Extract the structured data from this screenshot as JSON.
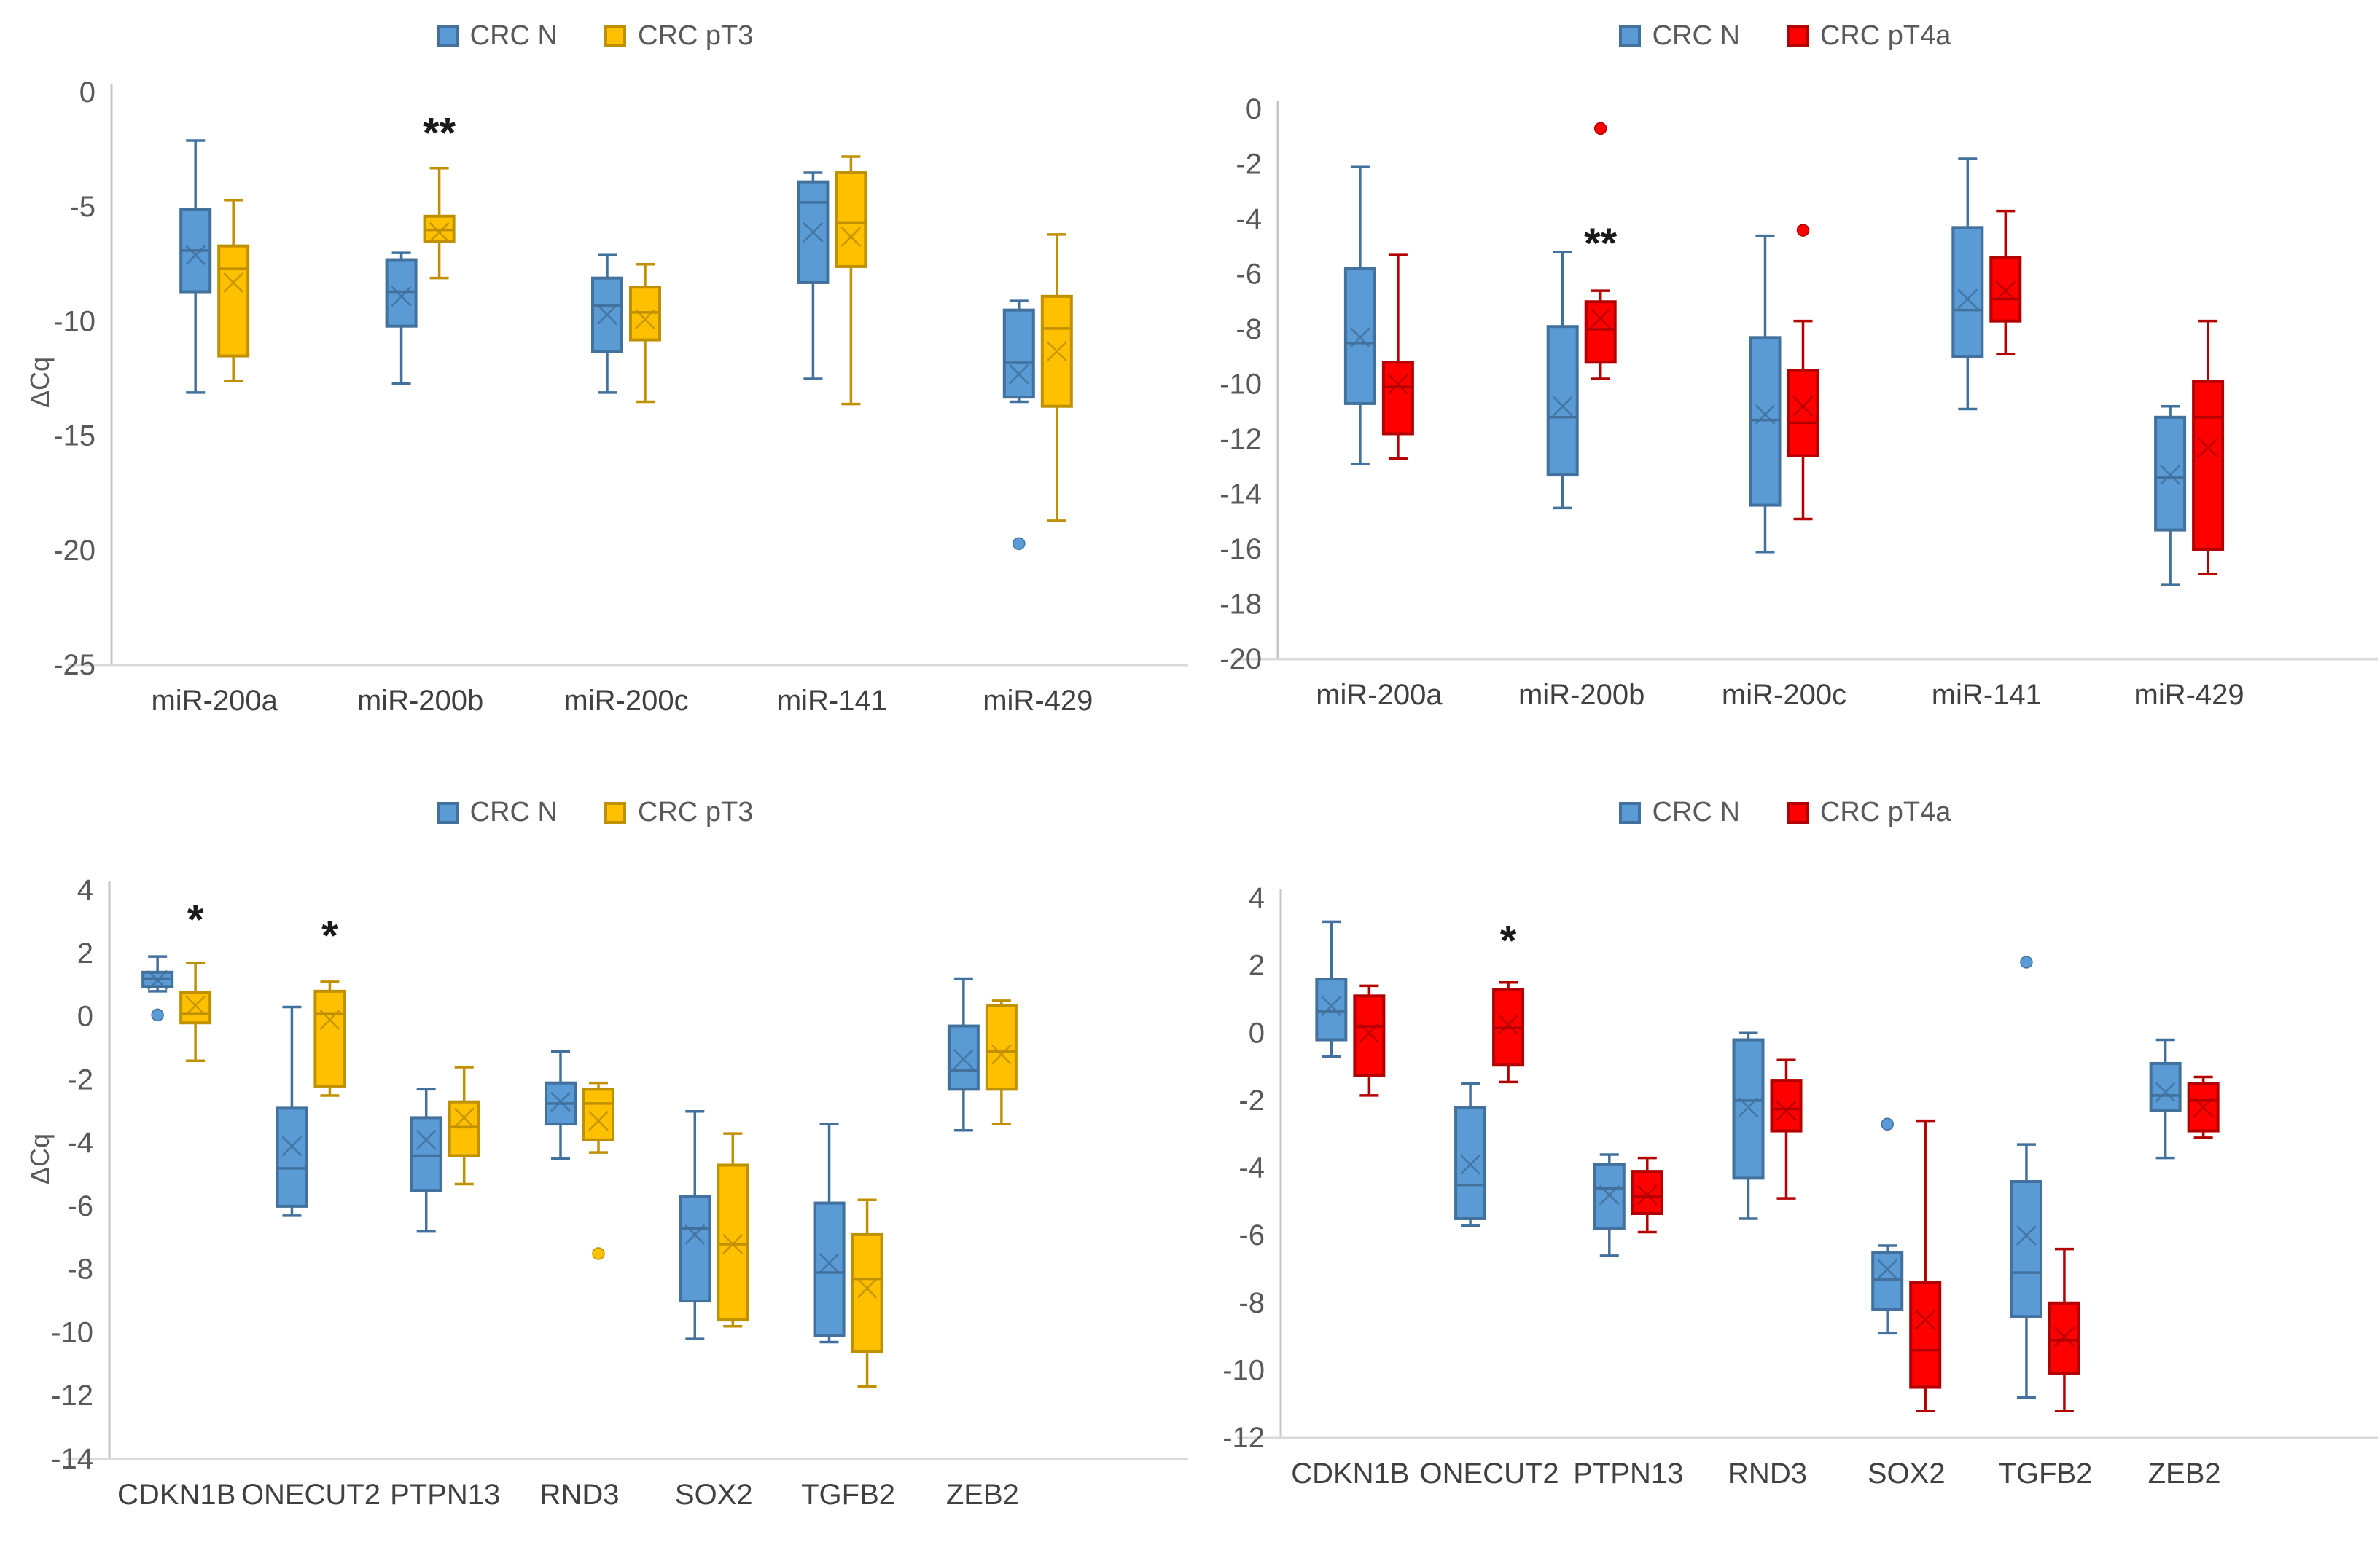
{
  "figure": {
    "description_labels": {
      "y_axis_title": "ΔCq"
    }
  },
  "chart_data": [
    {
      "type": "boxplot",
      "panel": "top-left",
      "ylabel": "ΔCq",
      "legend": [
        "CRC N",
        "CRC pT3"
      ],
      "series_colors": [
        {
          "fill": "#5B9BD5",
          "stroke": "#41719C"
        },
        {
          "fill": "#FFC000",
          "stroke": "#BF9000"
        }
      ],
      "ylim": [
        -25,
        0
      ],
      "ystep": 5,
      "grid": false,
      "legend_position": "top",
      "categories": [
        "miR-200a",
        "miR-200b",
        "miR-200c",
        "miR-141",
        "miR-429"
      ],
      "series": [
        {
          "name": "CRC N",
          "boxes": [
            {
              "whisker_low": -13.1,
              "q1": -8.7,
              "median": -6.9,
              "mean": -7.1,
              "q3": -5.1,
              "whisker_high": -2.1,
              "outliers": []
            },
            {
              "whisker_low": -12.7,
              "q1": -10.2,
              "median": -8.7,
              "mean": -8.9,
              "q3": -7.3,
              "whisker_high": -7.0,
              "outliers": []
            },
            {
              "whisker_low": -13.1,
              "q1": -11.3,
              "median": -9.3,
              "mean": -9.7,
              "q3": -8.1,
              "whisker_high": -7.1,
              "outliers": []
            },
            {
              "whisker_low": -12.5,
              "q1": -8.3,
              "median": -4.8,
              "mean": -6.1,
              "q3": -3.9,
              "whisker_high": -3.5,
              "outliers": []
            },
            {
              "whisker_low": -13.5,
              "q1": -13.3,
              "median": -11.8,
              "mean": -12.3,
              "q3": -9.5,
              "whisker_high": -9.1,
              "outliers": [
                -19.7
              ]
            }
          ]
        },
        {
          "name": "CRC pT3",
          "boxes": [
            {
              "whisker_low": -12.6,
              "q1": -11.5,
              "median": -7.7,
              "mean": -8.3,
              "q3": -6.7,
              "whisker_high": -4.7,
              "outliers": []
            },
            {
              "whisker_low": -8.1,
              "q1": -6.5,
              "median": -6.0,
              "mean": -6.1,
              "q3": -5.4,
              "whisker_high": -3.3,
              "outliers": [],
              "sig": "**",
              "sig_y": -2.4
            },
            {
              "whisker_low": -13.5,
              "q1": -10.8,
              "median": -9.6,
              "mean": -9.9,
              "q3": -8.5,
              "whisker_high": -7.5,
              "outliers": []
            },
            {
              "whisker_low": -13.6,
              "q1": -7.6,
              "median": -5.7,
              "mean": -6.3,
              "q3": -3.5,
              "whisker_high": -2.8,
              "outliers": []
            },
            {
              "whisker_low": -18.7,
              "q1": -13.7,
              "median": -10.3,
              "mean": -11.3,
              "q3": -8.9,
              "whisker_high": -6.2,
              "outliers": []
            }
          ]
        }
      ]
    },
    {
      "type": "boxplot",
      "panel": "top-right",
      "ylabel": "",
      "legend": [
        "CRC N",
        "CRC pT4a"
      ],
      "series_colors": [
        {
          "fill": "#5B9BD5",
          "stroke": "#41719C"
        },
        {
          "fill": "#FF0000",
          "stroke": "#B30000"
        }
      ],
      "ylim": [
        -20,
        0
      ],
      "ystep": 2,
      "grid": false,
      "legend_position": "top",
      "categories": [
        "miR-200a",
        "miR-200b",
        "miR-200c",
        "miR-141",
        "miR-429"
      ],
      "series": [
        {
          "name": "CRC N",
          "boxes": [
            {
              "whisker_low": -12.9,
              "q1": -10.7,
              "median": -8.5,
              "mean": -8.3,
              "q3": -5.8,
              "whisker_high": -2.1,
              "outliers": []
            },
            {
              "whisker_low": -14.5,
              "q1": -13.3,
              "median": -11.2,
              "mean": -10.8,
              "q3": -7.9,
              "whisker_high": -5.2,
              "outliers": []
            },
            {
              "whisker_low": -16.1,
              "q1": -14.4,
              "median": -11.3,
              "mean": -11.1,
              "q3": -8.3,
              "whisker_high": -4.6,
              "outliers": []
            },
            {
              "whisker_low": -10.9,
              "q1": -9.0,
              "median": -7.3,
              "mean": -6.9,
              "q3": -4.3,
              "whisker_high": -1.8,
              "outliers": []
            },
            {
              "whisker_low": -17.3,
              "q1": -15.3,
              "median": -13.4,
              "mean": -13.3,
              "q3": -11.2,
              "whisker_high": -10.8,
              "outliers": []
            }
          ]
        },
        {
          "name": "CRC pT4a",
          "boxes": [
            {
              "whisker_low": -12.7,
              "q1": -11.8,
              "median": -10.1,
              "mean": -10.0,
              "q3": -9.2,
              "whisker_high": -5.3,
              "outliers": []
            },
            {
              "whisker_low": -9.8,
              "q1": -9.2,
              "median": -8.0,
              "mean": -7.6,
              "q3": -7.0,
              "whisker_high": -6.6,
              "outliers": [
                -0.7
              ],
              "sig": "**",
              "sig_y": -5.4
            },
            {
              "whisker_low": -14.9,
              "q1": -12.6,
              "median": -11.4,
              "mean": -10.8,
              "q3": -9.5,
              "whisker_high": -7.7,
              "outliers": [
                -4.4
              ]
            },
            {
              "whisker_low": -8.9,
              "q1": -7.7,
              "median": -6.9,
              "mean": -6.6,
              "q3": -5.4,
              "whisker_high": -3.7,
              "outliers": []
            },
            {
              "whisker_low": -16.9,
              "q1": -16.0,
              "median": -11.2,
              "mean": -12.3,
              "q3": -9.9,
              "whisker_high": -7.7,
              "outliers": []
            }
          ]
        }
      ]
    },
    {
      "type": "boxplot",
      "panel": "bottom-left",
      "ylabel": "ΔCq",
      "legend": [
        "CRC N",
        "CRC pT3"
      ],
      "series_colors": [
        {
          "fill": "#5B9BD5",
          "stroke": "#41719C"
        },
        {
          "fill": "#FFC000",
          "stroke": "#BF9000"
        }
      ],
      "ylim": [
        -14,
        4
      ],
      "ystep": 2,
      "grid": false,
      "legend_position": "top",
      "categories": [
        "CDKN1B",
        "ONECUT2",
        "PTPN13",
        "RND3",
        "SOX2",
        "TGFB2",
        "ZEB2"
      ],
      "series": [
        {
          "name": "CRC N",
          "boxes": [
            {
              "whisker_low": 0.8,
              "q1": 0.95,
              "median": 1.2,
              "mean": 1.15,
              "q3": 1.4,
              "whisker_high": 1.9,
              "outliers": [
                0.05
              ]
            },
            {
              "whisker_low": -6.3,
              "q1": -6.0,
              "median": -4.8,
              "mean": -4.1,
              "q3": -2.9,
              "whisker_high": 0.3,
              "outliers": []
            },
            {
              "whisker_low": -6.8,
              "q1": -5.5,
              "median": -4.4,
              "mean": -3.9,
              "q3": -3.2,
              "whisker_high": -2.3,
              "outliers": []
            },
            {
              "whisker_low": -4.5,
              "q1": -3.4,
              "median": -2.75,
              "mean": -2.7,
              "q3": -2.1,
              "whisker_high": -1.1,
              "outliers": []
            },
            {
              "whisker_low": -10.2,
              "q1": -9.0,
              "median": -6.7,
              "mean": -6.9,
              "q3": -5.7,
              "whisker_high": -3.0,
              "outliers": []
            },
            {
              "whisker_low": -10.3,
              "q1": -10.1,
              "median": -8.1,
              "mean": -7.8,
              "q3": -5.9,
              "whisker_high": -3.4,
              "outliers": []
            },
            {
              "whisker_low": -3.6,
              "q1": -2.3,
              "median": -1.7,
              "mean": -1.35,
              "q3": -0.3,
              "whisker_high": 1.2,
              "outliers": []
            }
          ]
        },
        {
          "name": "CRC pT3",
          "boxes": [
            {
              "whisker_low": -1.4,
              "q1": -0.2,
              "median": 0.1,
              "mean": 0.35,
              "q3": 0.75,
              "whisker_high": 1.7,
              "outliers": [],
              "sig": "*",
              "sig_y": 2.6
            },
            {
              "whisker_low": -2.5,
              "q1": -2.2,
              "median": 0.1,
              "mean": -0.1,
              "q3": 0.8,
              "whisker_high": 1.1,
              "outliers": [],
              "sig": "*",
              "sig_y": 2.1
            },
            {
              "whisker_low": -5.3,
              "q1": -4.4,
              "median": -3.5,
              "mean": -3.2,
              "q3": -2.7,
              "whisker_high": -1.6,
              "outliers": []
            },
            {
              "whisker_low": -4.3,
              "q1": -3.9,
              "median": -2.75,
              "mean": -3.3,
              "q3": -2.3,
              "whisker_high": -2.1,
              "outliers": [
                -7.5
              ]
            },
            {
              "whisker_low": -9.8,
              "q1": -9.6,
              "median": -7.2,
              "mean": -7.2,
              "q3": -4.7,
              "whisker_high": -3.7,
              "outliers": []
            },
            {
              "whisker_low": -11.7,
              "q1": -10.6,
              "median": -8.3,
              "mean": -8.6,
              "q3": -6.9,
              "whisker_high": -5.8,
              "outliers": []
            },
            {
              "whisker_low": -3.4,
              "q1": -2.3,
              "median": -1.1,
              "mean": -1.2,
              "q3": 0.35,
              "whisker_high": 0.5,
              "outliers": []
            }
          ]
        }
      ]
    },
    {
      "type": "boxplot",
      "panel": "bottom-right",
      "ylabel": "",
      "legend": [
        "CRC N",
        "CRC pT4a"
      ],
      "series_colors": [
        {
          "fill": "#5B9BD5",
          "stroke": "#41719C"
        },
        {
          "fill": "#FF0000",
          "stroke": "#B30000"
        }
      ],
      "ylim": [
        -12,
        4
      ],
      "ystep": 2,
      "grid": false,
      "legend_position": "top",
      "categories": [
        "CDKN1B",
        "ONECUT2",
        "PTPN13",
        "RND3",
        "SOX2",
        "TGFB2",
        "ZEB2"
      ],
      "series": [
        {
          "name": "CRC N",
          "boxes": [
            {
              "whisker_low": -0.7,
              "q1": -0.2,
              "median": 0.65,
              "mean": 0.8,
              "q3": 1.6,
              "whisker_high": 3.3,
              "outliers": []
            },
            {
              "whisker_low": -5.7,
              "q1": -5.5,
              "median": -4.5,
              "mean": -3.9,
              "q3": -2.2,
              "whisker_high": -1.5,
              "outliers": []
            },
            {
              "whisker_low": -6.6,
              "q1": -5.8,
              "median": -4.6,
              "mean": -4.8,
              "q3": -3.9,
              "whisker_high": -3.6,
              "outliers": []
            },
            {
              "whisker_low": -5.5,
              "q1": -4.3,
              "median": -2.0,
              "mean": -2.2,
              "q3": -0.2,
              "whisker_high": 0.0,
              "outliers": []
            },
            {
              "whisker_low": -8.9,
              "q1": -8.2,
              "median": -7.3,
              "mean": -7.0,
              "q3": -6.5,
              "whisker_high": -6.3,
              "outliers": [
                -2.7
              ]
            },
            {
              "whisker_low": -10.8,
              "q1": -8.4,
              "median": -7.1,
              "mean": -6.0,
              "q3": -4.4,
              "whisker_high": -3.3,
              "outliers": [
                2.1
              ]
            },
            {
              "whisker_low": -3.7,
              "q1": -2.3,
              "median": -1.85,
              "mean": -1.75,
              "q3": -0.9,
              "whisker_high": -0.2,
              "outliers": []
            }
          ]
        },
        {
          "name": "CRC pT4a",
          "boxes": [
            {
              "whisker_low": -1.85,
              "q1": -1.25,
              "median": 0.2,
              "mean": 0.0,
              "q3": 1.1,
              "whisker_high": 1.4,
              "outliers": []
            },
            {
              "whisker_low": -1.45,
              "q1": -0.95,
              "median": 0.15,
              "mean": 0.25,
              "q3": 1.3,
              "whisker_high": 1.5,
              "outliers": [],
              "sig": "*",
              "sig_y": 2.3
            },
            {
              "whisker_low": -5.9,
              "q1": -5.35,
              "median": -4.85,
              "mean": -4.8,
              "q3": -4.1,
              "whisker_high": -3.7,
              "outliers": []
            },
            {
              "whisker_low": -4.9,
              "q1": -2.9,
              "median": -2.25,
              "mean": -2.3,
              "q3": -1.4,
              "whisker_high": -0.8,
              "outliers": []
            },
            {
              "whisker_low": -11.2,
              "q1": -10.5,
              "median": -9.4,
              "mean": -8.5,
              "q3": -7.4,
              "whisker_high": -2.6,
              "outliers": []
            },
            {
              "whisker_low": -11.2,
              "q1": -10.1,
              "median": -9.1,
              "mean": -9.0,
              "q3": -8.0,
              "whisker_high": -6.4,
              "outliers": []
            },
            {
              "whisker_low": -3.1,
              "q1": -2.9,
              "median": -2.0,
              "mean": -2.2,
              "q3": -1.5,
              "whisker_high": -1.3,
              "outliers": []
            }
          ]
        }
      ]
    }
  ]
}
